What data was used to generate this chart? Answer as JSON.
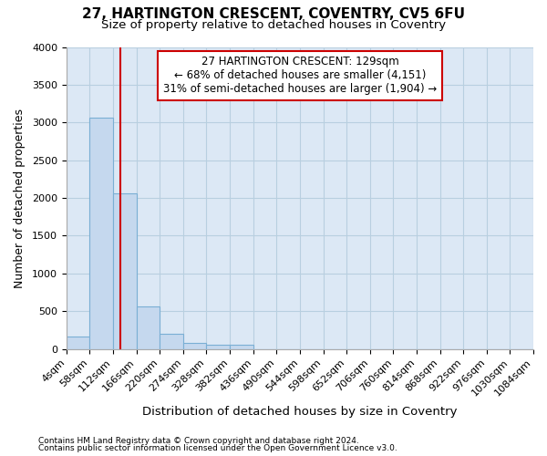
{
  "title_line1": "27, HARTINGTON CRESCENT, COVENTRY, CV5 6FU",
  "title_line2": "Size of property relative to detached houses in Coventry",
  "xlabel": "Distribution of detached houses by size in Coventry",
  "ylabel": "Number of detached properties",
  "footnote1": "Contains HM Land Registry data © Crown copyright and database right 2024.",
  "footnote2": "Contains public sector information licensed under the Open Government Licence v3.0.",
  "annotation_line1": "27 HARTINGTON CRESCENT: 129sqm",
  "annotation_line2": "← 68% of detached houses are smaller (4,151)",
  "annotation_line3": "31% of semi-detached houses are larger (1,904) →",
  "property_size": 129,
  "bin_edges": [
    4,
    58,
    112,
    166,
    220,
    274,
    328,
    382,
    436,
    490,
    544,
    598,
    652,
    706,
    760,
    814,
    868,
    922,
    976,
    1030,
    1084
  ],
  "bar_heights": [
    160,
    3060,
    2060,
    560,
    205,
    75,
    60,
    55,
    0,
    0,
    0,
    0,
    0,
    0,
    0,
    0,
    0,
    0,
    0,
    0
  ],
  "bar_color": "#c5d8ee",
  "bar_edge_color": "#7aafd4",
  "vline_color": "#cc0000",
  "vline_x": 129,
  "box_color": "#cc0000",
  "ylim": [
    0,
    4000
  ],
  "yticks": [
    0,
    500,
    1000,
    1500,
    2000,
    2500,
    3000,
    3500,
    4000
  ],
  "bg_color": "#ffffff",
  "plot_bg_color": "#dce8f5",
  "grid_color": "#b8cfe0",
  "title_fontsize": 11,
  "subtitle_fontsize": 9.5,
  "tick_fontsize": 8,
  "annotation_fontsize": 8.5
}
